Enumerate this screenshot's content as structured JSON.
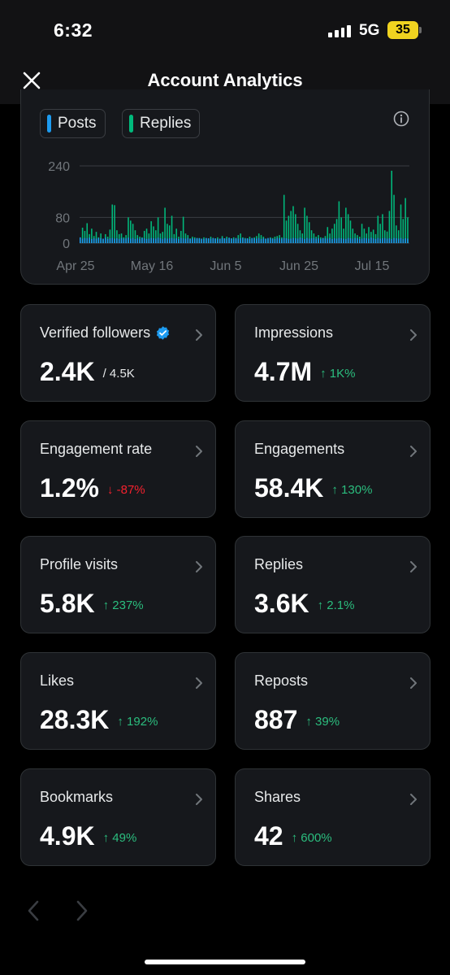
{
  "status_bar": {
    "time": "6:32",
    "network": "5G",
    "battery": "35"
  },
  "header": {
    "title": "Account Analytics"
  },
  "chart": {
    "legend": [
      {
        "label": "Posts",
        "color": "#1d9bf0"
      },
      {
        "label": "Replies",
        "color": "#00ba7c"
      }
    ]
  },
  "chart_data": {
    "type": "bar",
    "y_ticks": [
      "240",
      "80",
      "0"
    ],
    "ylim": [
      0,
      280
    ],
    "x_tick_labels": [
      "Apr 25",
      "May 16",
      "Jun 5",
      "Jun 25",
      "Jul 15"
    ],
    "series": [
      {
        "name": "Posts",
        "color": "#1d9bf0",
        "values": [
          18,
          14,
          16,
          15,
          17,
          13,
          15,
          14,
          16,
          15,
          14,
          17,
          13,
          15,
          16,
          14,
          15,
          13,
          16,
          14,
          15,
          17,
          14,
          16,
          13,
          15,
          14,
          16,
          15,
          13,
          14,
          16,
          15,
          14,
          17,
          15,
          13,
          16,
          14,
          15,
          16,
          14,
          15,
          13,
          16,
          15,
          14,
          16,
          13,
          15,
          14,
          16,
          15,
          14,
          13,
          16,
          15,
          14,
          16,
          15,
          13,
          14,
          16,
          15,
          14,
          17,
          15,
          13,
          16,
          14,
          15,
          16,
          14,
          15,
          13,
          16,
          15,
          14,
          16,
          13,
          15,
          14,
          16,
          15,
          14,
          13,
          16,
          15,
          14,
          16,
          15,
          13,
          14,
          16,
          15,
          14,
          17,
          15,
          13,
          16,
          14,
          15,
          16,
          14,
          15,
          13,
          16,
          15,
          14,
          16,
          13,
          15,
          14,
          16,
          15,
          14,
          13,
          16,
          15,
          14,
          16,
          15,
          13,
          14,
          16,
          15,
          14,
          17,
          15,
          13,
          16,
          14,
          15,
          16,
          14,
          15,
          13,
          16,
          15,
          14,
          16,
          13,
          15,
          14,
          16,
          15
        ]
      },
      {
        "name": "Replies",
        "color": "#00ba7c",
        "values": [
          10,
          48,
          38,
          62,
          28,
          45,
          22,
          35,
          18,
          30,
          12,
          28,
          20,
          42,
          120,
          118,
          40,
          28,
          30,
          18,
          25,
          80,
          70,
          60,
          40,
          25,
          20,
          18,
          38,
          45,
          30,
          68,
          52,
          40,
          80,
          30,
          35,
          110,
          60,
          55,
          85,
          28,
          45,
          20,
          38,
          82,
          30,
          25,
          15,
          20,
          18,
          14,
          16,
          12,
          18,
          15,
          14,
          20,
          16,
          12,
          18,
          14,
          22,
          15,
          20,
          16,
          14,
          18,
          12,
          25,
          30,
          18,
          16,
          14,
          20,
          15,
          18,
          22,
          30,
          25,
          20,
          14,
          12,
          18,
          16,
          20,
          22,
          25,
          18,
          150,
          70,
          85,
          100,
          115,
          90,
          60,
          40,
          30,
          110,
          85,
          65,
          40,
          30,
          20,
          25,
          18,
          16,
          22,
          50,
          30,
          45,
          60,
          75,
          130,
          80,
          45,
          110,
          90,
          70,
          45,
          30,
          25,
          20,
          60,
          45,
          30,
          50,
          35,
          42,
          28,
          85,
          60,
          90,
          40,
          36,
          100,
          225,
          150,
          55,
          40,
          120,
          75,
          140,
          80
        ]
      }
    ]
  },
  "metrics": [
    {
      "label": "Verified followers",
      "value": "2.4K",
      "sub": "/ 4.5K",
      "sub_kind": "total",
      "verified": true
    },
    {
      "label": "Impressions",
      "value": "4.7M",
      "sub": "↑ 1K%",
      "sub_kind": "up"
    },
    {
      "label": "Engagement rate",
      "value": "1.2%",
      "sub": "↓ -87%",
      "sub_kind": "down"
    },
    {
      "label": "Engagements",
      "value": "58.4K",
      "sub": "↑ 130%",
      "sub_kind": "up"
    },
    {
      "label": "Profile visits",
      "value": "5.8K",
      "sub": "↑ 237%",
      "sub_kind": "up"
    },
    {
      "label": "Replies",
      "value": "3.6K",
      "sub": "↑ 2.1%",
      "sub_kind": "up"
    },
    {
      "label": "Likes",
      "value": "28.3K",
      "sub": "↑ 192%",
      "sub_kind": "up"
    },
    {
      "label": "Reposts",
      "value": "887",
      "sub": "↑ 39%",
      "sub_kind": "up"
    },
    {
      "label": "Bookmarks",
      "value": "4.9K",
      "sub": "↑ 49%",
      "sub_kind": "up"
    },
    {
      "label": "Shares",
      "value": "42",
      "sub": "↑ 600%",
      "sub_kind": "up"
    }
  ],
  "icons": {
    "close": "close-icon",
    "info": "info-icon",
    "chevron": "chevron-right-icon",
    "verified": "verified-badge-icon",
    "prev": "chevron-left-icon",
    "next": "chevron-right-icon"
  }
}
